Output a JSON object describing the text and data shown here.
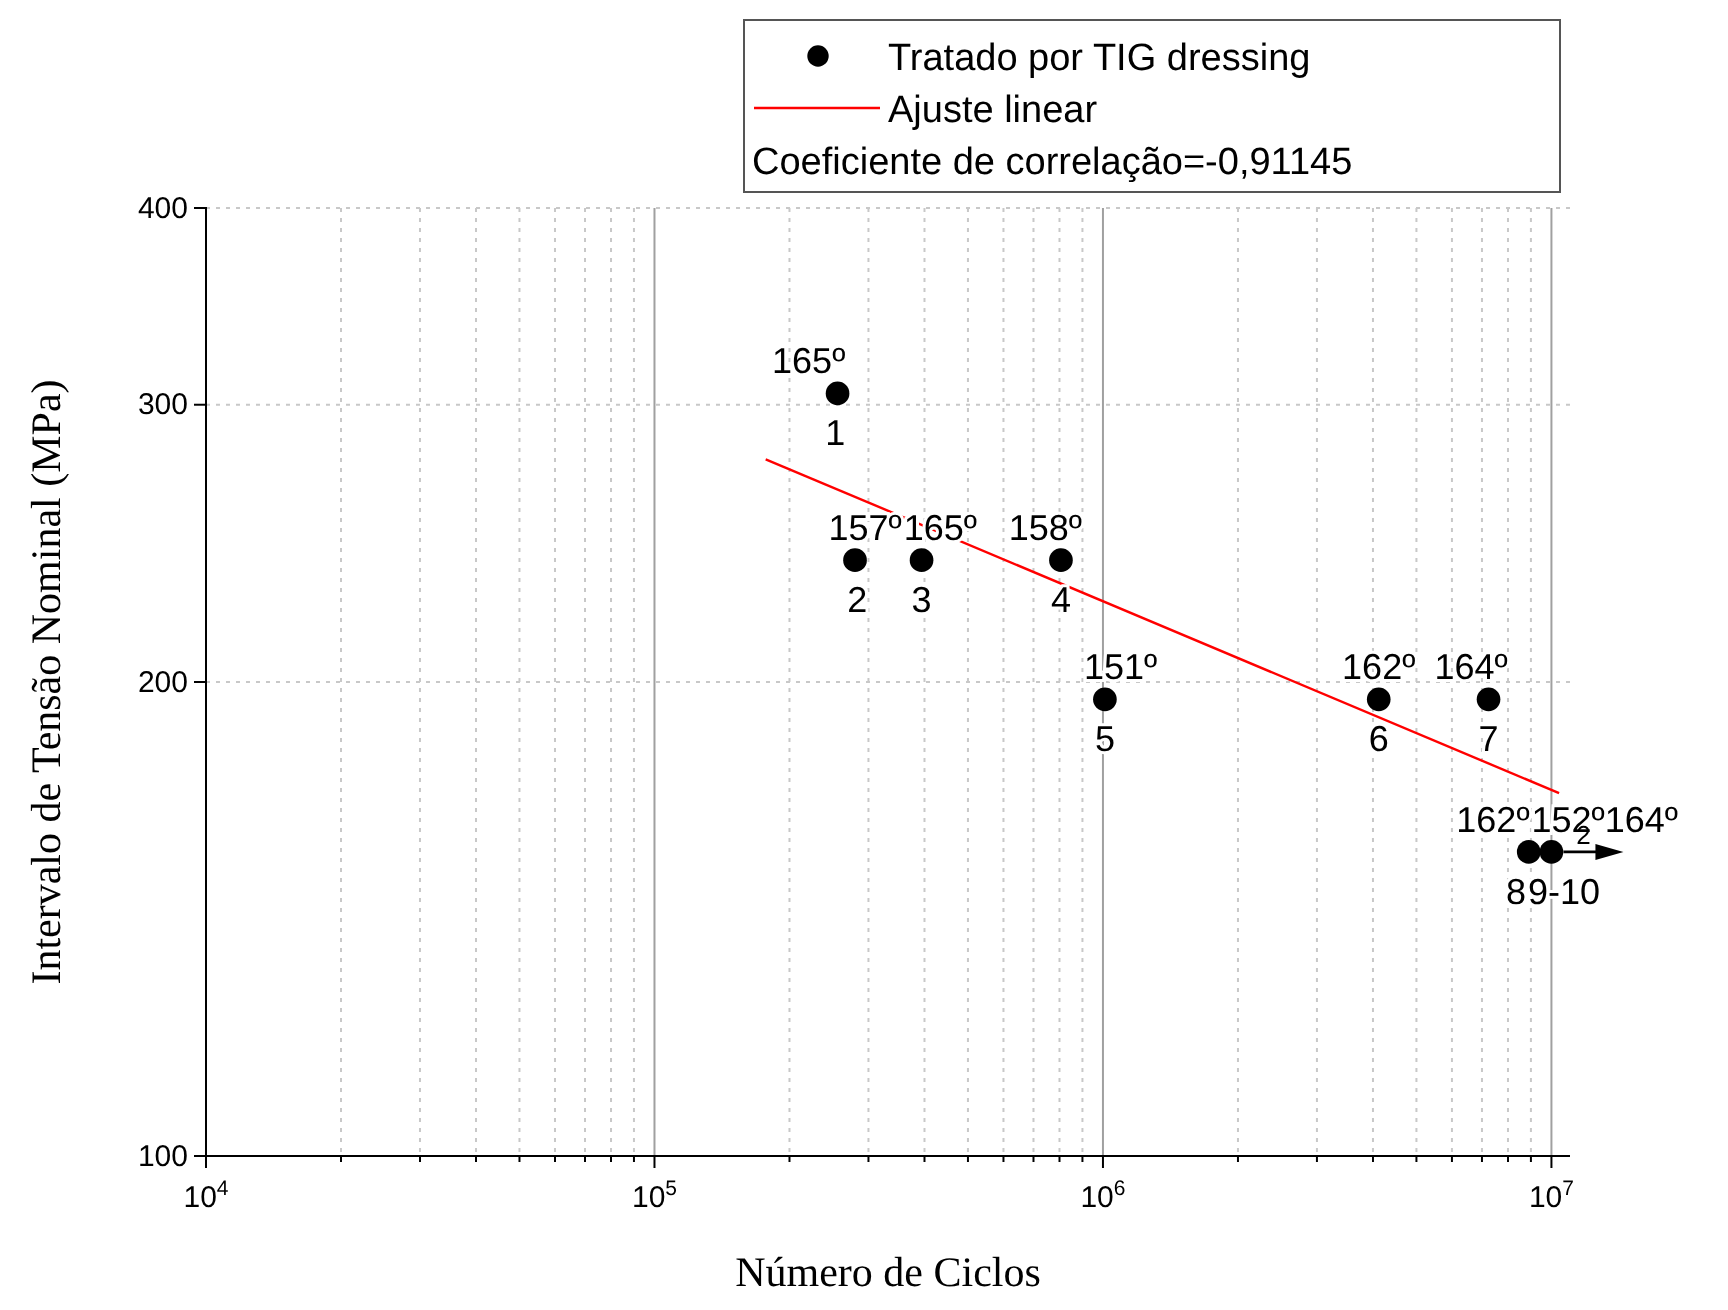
{
  "chart_data": {
    "type": "scatter",
    "xlabel": "Número de Ciclos",
    "ylabel": "Intervalo de Tensão Nominal (MPa)",
    "log": "xy",
    "grid": true,
    "legend": "top right",
    "marker": "circle",
    "xlim": [
      10000,
      11000000
    ],
    "ylim": [
      100,
      400
    ],
    "xticks": [
      {
        "value": 10000,
        "label": "10$^{4}$"
      },
      {
        "value": 20000,
        "label": null
      },
      {
        "value": 30000,
        "label": null
      },
      {
        "value": 40000,
        "label": null
      },
      {
        "value": 50000,
        "label": null
      },
      {
        "value": 60000,
        "label": null
      },
      {
        "value": 70000,
        "label": null
      },
      {
        "value": 80000,
        "label": null
      },
      {
        "value": 90000,
        "label": null
      },
      {
        "value": 100000,
        "label": "10$^{5}$"
      },
      {
        "value": 200000,
        "label": null
      },
      {
        "value": 300000,
        "label": null
      },
      {
        "value": 400000,
        "label": null
      },
      {
        "value": 500000,
        "label": null
      },
      {
        "value": 600000,
        "label": null
      },
      {
        "value": 700000,
        "label": null
      },
      {
        "value": 800000,
        "label": null
      },
      {
        "value": 900000,
        "label": null
      },
      {
        "value": 1000000,
        "label": "10$^{6}$"
      },
      {
        "value": 2000000,
        "label": null
      },
      {
        "value": 3000000,
        "label": null
      },
      {
        "value": 4000000,
        "label": null
      },
      {
        "value": 5000000,
        "label": null
      },
      {
        "value": 6000000,
        "label": null
      },
      {
        "value": 7000000,
        "label": null
      },
      {
        "value": 8000000,
        "label": null
      },
      {
        "value": 9000000,
        "label": null
      },
      {
        "value": 10000000,
        "label": "10$^{7}$"
      }
    ],
    "yticks": [
      100,
      200,
      300,
      400
    ],
    "x": [
      256000,
      280000,
      394000,
      806000,
      1010000,
      4120000,
      7240000,
      8900000,
      10000000
    ],
    "series": [
      {
        "name": "Tratado por TIG dressing",
        "color": "#000000",
        "values": [
          305,
          239,
          239,
          239,
          195,
          195,
          195,
          156,
          156
        ]
      },
      {
        "name": "Ajuste linear",
        "type": "line",
        "color": "#ff0000",
        "line_style": "solid",
        "marker": "none",
        "x": [
          177000,
          10400000
        ],
        "values": [
          277,
          170
        ]
      }
    ],
    "annotations": [
      {
        "text": "165º",
        "x": 256000,
        "y": 305
      },
      {
        "text": "157º",
        "x": 280000,
        "y": 239
      },
      {
        "text": "165º",
        "x": 394000,
        "y": 239
      },
      {
        "text": "158º",
        "x": 806000,
        "y": 239
      },
      {
        "text": "151º",
        "x": 1010000,
        "y": 195
      },
      {
        "text": "162º",
        "x": 4120000,
        "y": 195
      },
      {
        "text": "164º",
        "x": 7240000,
        "y": 195
      },
      {
        "text": "162º",
        "x": 8900000,
        "y": 156
      },
      {
        "text": "152º164º",
        "x": 10000000,
        "y": 156
      },
      {
        "text": "1",
        "x": 256000,
        "y": 305
      },
      {
        "text": "2",
        "x": 280000,
        "y": 239
      },
      {
        "text": "3",
        "x": 394000,
        "y": 239
      },
      {
        "text": "4",
        "x": 806000,
        "y": 239
      },
      {
        "text": "5",
        "x": 1010000,
        "y": 195
      },
      {
        "text": "6",
        "x": 4120000,
        "y": 195
      },
      {
        "text": "7",
        "x": 7240000,
        "y": 195
      },
      {
        "text": "8",
        "x": 8900000,
        "y": 156
      },
      {
        "text": "9-10",
        "x": 10000000,
        "y": 156
      },
      {
        "text": "2",
        "x": 10000000,
        "y": 156
      },
      "Coeficiente de correlação=-0,91145"
    ]
  }
}
